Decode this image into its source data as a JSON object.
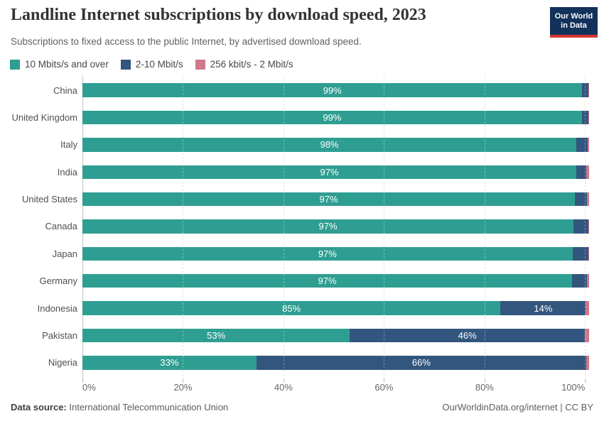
{
  "header": {
    "title": "Landline Internet subscriptions by download speed, 2023",
    "subtitle": "Subscriptions to fixed access to the public Internet, by advertised download speed.",
    "logo": {
      "line1": "Our World",
      "line2": "in Data"
    }
  },
  "legend": {
    "items": [
      {
        "label": "10 Mbits/s and over",
        "color": "#2f9e92"
      },
      {
        "label": "2-10 Mbit/s",
        "color": "#33567e"
      },
      {
        "label": "256 kbit/s - 2 Mbit/s",
        "color": "#d0778a"
      }
    ]
  },
  "chart_data": {
    "type": "bar",
    "orientation": "horizontal",
    "stacked": true,
    "unit": "%",
    "title": "Landline Internet subscriptions by download speed, 2023",
    "categories": [
      "China",
      "United Kingdom",
      "Italy",
      "India",
      "United States",
      "Canada",
      "Japan",
      "Germany",
      "Indonesia",
      "Pakistan",
      "Nigeria"
    ],
    "series": [
      {
        "name": "10 Mbits/s and over",
        "color": "#2f9e92",
        "values": [
          99.2,
          98.9,
          97.9,
          97.4,
          97.2,
          97.0,
          96.7,
          96.7,
          85.0,
          53.0,
          33.2
        ],
        "labels": [
          "99%",
          "99%",
          "98%",
          "97%",
          "97%",
          "97%",
          "97%",
          "97%",
          "85%",
          "53%",
          "33%"
        ]
      },
      {
        "name": "2-10 Mbit/s",
        "color": "#33567e",
        "values": [
          1.2,
          1.3,
          2.3,
          2.0,
          2.5,
          3.0,
          3.2,
          3.1,
          14.2,
          46.1,
          66.5
        ],
        "labels": [
          "",
          "",
          "",
          "",
          "",
          "",
          "",
          "",
          "14%",
          "46%",
          "66%"
        ]
      },
      {
        "name": "256 kbit/s - 2 Mbit/s",
        "color": "#d0778a",
        "values": [
          0.2,
          0.2,
          0.3,
          0.6,
          0.4,
          0.2,
          0.2,
          0.4,
          0.7,
          0.9,
          0.6
        ],
        "labels": [
          "",
          "",
          "",
          "",
          "",
          "",
          "",
          "",
          "",
          "",
          ""
        ]
      }
    ],
    "x_axis": {
      "ticks": [
        0,
        20,
        40,
        60,
        80,
        100
      ],
      "tick_labels": [
        "0%",
        "20%",
        "40%",
        "60%",
        "80%",
        "100%"
      ],
      "max": 100.8
    },
    "grid": true,
    "legend_position": "top"
  },
  "footer": {
    "source_label": "Data source:",
    "source_value": "International Telecommunication Union",
    "link": "OurWorldinData.org/internet | CC BY"
  }
}
